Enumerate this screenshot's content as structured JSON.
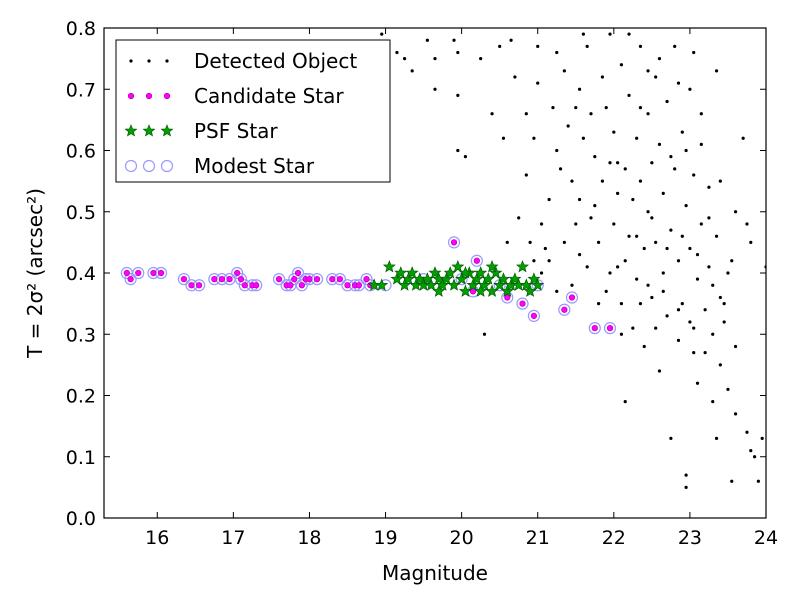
{
  "chart_data": {
    "type": "scatter",
    "xlabel": "Magnitude",
    "ylabel": "T = 2σ² (arcsec²)",
    "xlim": [
      15.3,
      24.0
    ],
    "ylim": [
      0.0,
      0.8
    ],
    "x_ticks": [
      16,
      17,
      18,
      19,
      20,
      21,
      22,
      23,
      24
    ],
    "y_ticks": [
      0.0,
      0.1,
      0.2,
      0.3,
      0.4,
      0.5,
      0.6,
      0.7,
      0.8
    ],
    "grid": false,
    "legend_position": "top-left",
    "series": [
      {
        "name": "Detected Object",
        "marker": "dot",
        "color": "#000000",
        "points": [
          [
            18.95,
            0.79
          ],
          [
            19.15,
            0.76
          ],
          [
            19.25,
            0.75
          ],
          [
            19.55,
            0.78
          ],
          [
            19.65,
            0.7
          ],
          [
            19.9,
            0.78
          ],
          [
            19.95,
            0.76
          ],
          [
            20.05,
            0.59
          ],
          [
            19.95,
            0.6
          ],
          [
            19.95,
            0.69
          ],
          [
            20.25,
            0.75
          ],
          [
            20.4,
            0.66
          ],
          [
            20.5,
            0.77
          ],
          [
            20.65,
            0.78
          ],
          [
            20.7,
            0.72
          ],
          [
            20.85,
            0.56
          ],
          [
            20.85,
            0.66
          ],
          [
            20.95,
            0.62
          ],
          [
            21.0,
            0.71
          ],
          [
            21.05,
            0.48
          ],
          [
            20.9,
            0.45
          ],
          [
            21.1,
            0.44
          ],
          [
            21.15,
            0.52
          ],
          [
            21.2,
            0.67
          ],
          [
            21.25,
            0.6
          ],
          [
            21.3,
            0.57
          ],
          [
            21.35,
            0.73
          ],
          [
            21.4,
            0.64
          ],
          [
            21.45,
            0.55
          ],
          [
            21.5,
            0.48
          ],
          [
            21.55,
            0.43
          ],
          [
            21.55,
            0.7
          ],
          [
            21.6,
            0.62
          ],
          [
            21.65,
            0.77
          ],
          [
            21.7,
            0.66
          ],
          [
            21.75,
            0.59
          ],
          [
            21.75,
            0.51
          ],
          [
            21.8,
            0.45
          ],
          [
            21.85,
            0.72
          ],
          [
            21.9,
            0.67
          ],
          [
            21.9,
            0.37
          ],
          [
            21.95,
            0.58
          ],
          [
            21.95,
            0.79
          ],
          [
            22.0,
            0.48
          ],
          [
            22.0,
            0.63
          ],
          [
            22.05,
            0.41
          ],
          [
            22.05,
            0.53
          ],
          [
            22.1,
            0.74
          ],
          [
            22.1,
            0.35
          ],
          [
            22.15,
            0.57
          ],
          [
            22.15,
            0.19
          ],
          [
            22.2,
            0.46
          ],
          [
            22.2,
            0.69
          ],
          [
            22.25,
            0.52
          ],
          [
            22.25,
            0.31
          ],
          [
            22.3,
            0.62
          ],
          [
            22.3,
            0.39
          ],
          [
            22.35,
            0.77
          ],
          [
            22.35,
            0.55
          ],
          [
            22.4,
            0.44
          ],
          [
            22.4,
            0.28
          ],
          [
            22.45,
            0.66
          ],
          [
            22.45,
            0.5
          ],
          [
            22.5,
            0.58
          ],
          [
            22.5,
            0.36
          ],
          [
            22.55,
            0.72
          ],
          [
            22.55,
            0.45
          ],
          [
            22.6,
            0.24
          ],
          [
            22.6,
            0.61
          ],
          [
            22.65,
            0.53
          ],
          [
            22.65,
            0.4
          ],
          [
            22.7,
            0.68
          ],
          [
            22.7,
            0.33
          ],
          [
            22.75,
            0.47
          ],
          [
            22.75,
            0.13
          ],
          [
            22.8,
            0.57
          ],
          [
            22.8,
            0.77
          ],
          [
            22.85,
            0.42
          ],
          [
            22.85,
            0.29
          ],
          [
            22.9,
            0.63
          ],
          [
            22.9,
            0.35
          ],
          [
            22.95,
            0.51
          ],
          [
            22.95,
            0.07
          ],
          [
            22.95,
            0.05
          ],
          [
            23.0,
            0.44
          ],
          [
            23.0,
            0.7
          ],
          [
            23.05,
            0.31
          ],
          [
            23.05,
            0.56
          ],
          [
            23.1,
            0.39
          ],
          [
            23.1,
            0.22
          ],
          [
            23.15,
            0.48
          ],
          [
            23.15,
            0.66
          ],
          [
            23.2,
            0.34
          ],
          [
            23.2,
            0.27
          ],
          [
            23.25,
            0.54
          ],
          [
            23.25,
            0.41
          ],
          [
            23.3,
            0.3
          ],
          [
            23.3,
            0.19
          ],
          [
            23.35,
            0.13
          ],
          [
            23.35,
            0.46
          ],
          [
            23.35,
            0.73
          ],
          [
            23.4,
            0.36
          ],
          [
            23.4,
            0.25
          ],
          [
            23.45,
            0.32
          ],
          [
            23.5,
            0.21
          ],
          [
            23.55,
            0.06
          ],
          [
            23.6,
            0.17
          ],
          [
            23.7,
            0.62
          ],
          [
            23.75,
            0.14
          ],
          [
            23.8,
            0.11
          ],
          [
            23.85,
            0.1
          ],
          [
            23.9,
            0.06
          ],
          [
            23.95,
            0.13
          ],
          [
            22.6,
            0.75
          ],
          [
            22.45,
            0.73
          ],
          [
            22.85,
            0.71
          ],
          [
            23.05,
            0.76
          ],
          [
            22.2,
            0.79
          ],
          [
            21.6,
            0.79
          ],
          [
            22.95,
            0.6
          ],
          [
            23.15,
            0.61
          ],
          [
            22.75,
            0.59
          ],
          [
            23.25,
            0.49
          ],
          [
            22.35,
            0.67
          ],
          [
            21.95,
            0.4
          ],
          [
            22.15,
            0.42
          ],
          [
            22.45,
            0.38
          ],
          [
            22.65,
            0.37
          ],
          [
            22.85,
            0.34
          ],
          [
            23.0,
            0.32
          ],
          [
            23.05,
            0.27
          ],
          [
            22.55,
            0.31
          ],
          [
            22.35,
            0.35
          ],
          [
            22.1,
            0.3
          ],
          [
            21.8,
            0.35
          ],
          [
            21.65,
            0.41
          ],
          [
            21.45,
            0.38
          ],
          [
            21.25,
            0.37
          ],
          [
            21.05,
            0.4
          ],
          [
            21.15,
            0.42
          ],
          [
            21.7,
            0.49
          ],
          [
            21.85,
            0.55
          ],
          [
            22.05,
            0.58
          ],
          [
            22.3,
            0.46
          ],
          [
            22.5,
            0.49
          ],
          [
            22.7,
            0.44
          ],
          [
            22.9,
            0.46
          ],
          [
            23.1,
            0.43
          ],
          [
            23.3,
            0.38
          ],
          [
            23.45,
            0.35
          ],
          [
            23.55,
            0.42
          ],
          [
            23.6,
            0.28
          ],
          [
            23.5,
            0.4
          ],
          [
            23.4,
            0.55
          ],
          [
            23.6,
            0.5
          ],
          [
            23.75,
            0.48
          ],
          [
            23.8,
            0.45
          ],
          [
            24.0,
            0.41
          ],
          [
            21.35,
            0.45
          ],
          [
            21.55,
            0.52
          ],
          [
            20.75,
            0.49
          ],
          [
            20.95,
            0.42
          ],
          [
            20.6,
            0.45
          ],
          [
            20.55,
            0.62
          ],
          [
            20.3,
            0.3
          ],
          [
            19.65,
            0.75
          ],
          [
            19.35,
            0.73
          ],
          [
            21.0,
            0.77
          ],
          [
            21.25,
            0.76
          ],
          [
            21.5,
            0.67
          ]
        ]
      },
      {
        "name": "Candidate Star",
        "marker": "small-circle",
        "color": "#ff00ff",
        "points": [
          [
            15.6,
            0.4
          ],
          [
            15.65,
            0.39
          ],
          [
            15.75,
            0.4
          ],
          [
            15.95,
            0.4
          ],
          [
            16.05,
            0.4
          ],
          [
            16.35,
            0.39
          ],
          [
            16.45,
            0.38
          ],
          [
            16.55,
            0.38
          ],
          [
            16.75,
            0.39
          ],
          [
            16.85,
            0.39
          ],
          [
            16.95,
            0.39
          ],
          [
            17.05,
            0.4
          ],
          [
            17.1,
            0.39
          ],
          [
            17.15,
            0.38
          ],
          [
            17.25,
            0.38
          ],
          [
            17.3,
            0.38
          ],
          [
            17.6,
            0.39
          ],
          [
            17.7,
            0.38
          ],
          [
            17.75,
            0.38
          ],
          [
            17.8,
            0.39
          ],
          [
            17.85,
            0.4
          ],
          [
            17.9,
            0.38
          ],
          [
            17.95,
            0.39
          ],
          [
            18.0,
            0.39
          ],
          [
            18.1,
            0.39
          ],
          [
            18.3,
            0.39
          ],
          [
            18.4,
            0.39
          ],
          [
            18.5,
            0.38
          ],
          [
            18.6,
            0.38
          ],
          [
            18.65,
            0.38
          ],
          [
            18.75,
            0.39
          ],
          [
            18.8,
            0.38
          ],
          [
            19.9,
            0.45
          ],
          [
            20.2,
            0.42
          ],
          [
            20.15,
            0.37
          ],
          [
            20.6,
            0.36
          ],
          [
            20.8,
            0.35
          ],
          [
            20.95,
            0.33
          ],
          [
            21.35,
            0.34
          ],
          [
            21.45,
            0.36
          ],
          [
            21.75,
            0.31
          ],
          [
            21.95,
            0.31
          ]
        ]
      },
      {
        "name": "PSF Star",
        "marker": "star",
        "color": "#00a000",
        "points": [
          [
            18.85,
            0.38
          ],
          [
            18.95,
            0.38
          ],
          [
            19.05,
            0.41
          ],
          [
            19.15,
            0.39
          ],
          [
            19.2,
            0.4
          ],
          [
            19.25,
            0.38
          ],
          [
            19.3,
            0.39
          ],
          [
            19.35,
            0.4
          ],
          [
            19.4,
            0.38
          ],
          [
            19.45,
            0.39
          ],
          [
            19.5,
            0.38
          ],
          [
            19.55,
            0.39
          ],
          [
            19.6,
            0.38
          ],
          [
            19.65,
            0.4
          ],
          [
            19.7,
            0.39
          ],
          [
            19.75,
            0.38
          ],
          [
            19.8,
            0.39
          ],
          [
            19.85,
            0.4
          ],
          [
            19.9,
            0.38
          ],
          [
            19.95,
            0.41
          ],
          [
            20.0,
            0.39
          ],
          [
            20.05,
            0.37
          ],
          [
            20.1,
            0.4
          ],
          [
            20.15,
            0.38
          ],
          [
            20.2,
            0.39
          ],
          [
            20.25,
            0.4
          ],
          [
            20.3,
            0.38
          ],
          [
            20.35,
            0.39
          ],
          [
            20.4,
            0.37
          ],
          [
            20.45,
            0.4
          ],
          [
            20.5,
            0.38
          ],
          [
            20.55,
            0.39
          ],
          [
            20.6,
            0.37
          ],
          [
            20.65,
            0.38
          ],
          [
            20.7,
            0.39
          ],
          [
            20.75,
            0.38
          ],
          [
            20.8,
            0.41
          ],
          [
            20.85,
            0.38
          ],
          [
            20.9,
            0.37
          ],
          [
            20.95,
            0.39
          ],
          [
            21.0,
            0.38
          ],
          [
            19.7,
            0.37
          ],
          [
            20.05,
            0.4
          ],
          [
            20.25,
            0.37
          ],
          [
            20.4,
            0.41
          ]
        ]
      },
      {
        "name": "Modest Star",
        "marker": "open-circle",
        "color": "#9999ff",
        "points": [
          [
            15.6,
            0.4
          ],
          [
            15.65,
            0.39
          ],
          [
            15.75,
            0.4
          ],
          [
            15.95,
            0.4
          ],
          [
            16.05,
            0.4
          ],
          [
            16.35,
            0.39
          ],
          [
            16.45,
            0.38
          ],
          [
            16.55,
            0.38
          ],
          [
            16.75,
            0.39
          ],
          [
            16.85,
            0.39
          ],
          [
            16.95,
            0.39
          ],
          [
            17.05,
            0.4
          ],
          [
            17.1,
            0.39
          ],
          [
            17.15,
            0.38
          ],
          [
            17.25,
            0.38
          ],
          [
            17.3,
            0.38
          ],
          [
            17.6,
            0.39
          ],
          [
            17.7,
            0.38
          ],
          [
            17.75,
            0.38
          ],
          [
            17.8,
            0.39
          ],
          [
            17.85,
            0.4
          ],
          [
            17.9,
            0.38
          ],
          [
            17.95,
            0.39
          ],
          [
            18.0,
            0.39
          ],
          [
            18.1,
            0.39
          ],
          [
            18.3,
            0.39
          ],
          [
            18.4,
            0.39
          ],
          [
            18.5,
            0.38
          ],
          [
            18.6,
            0.38
          ],
          [
            18.65,
            0.38
          ],
          [
            18.75,
            0.39
          ],
          [
            18.8,
            0.38
          ],
          [
            19.9,
            0.45
          ],
          [
            20.2,
            0.42
          ],
          [
            20.15,
            0.37
          ],
          [
            20.6,
            0.36
          ],
          [
            20.8,
            0.35
          ],
          [
            20.95,
            0.33
          ],
          [
            21.35,
            0.34
          ],
          [
            21.45,
            0.36
          ],
          [
            21.75,
            0.31
          ],
          [
            21.95,
            0.31
          ],
          [
            19.0,
            0.38
          ],
          [
            19.5,
            0.39
          ],
          [
            20.0,
            0.39
          ],
          [
            20.5,
            0.38
          ],
          [
            21.0,
            0.38
          ]
        ]
      }
    ]
  }
}
